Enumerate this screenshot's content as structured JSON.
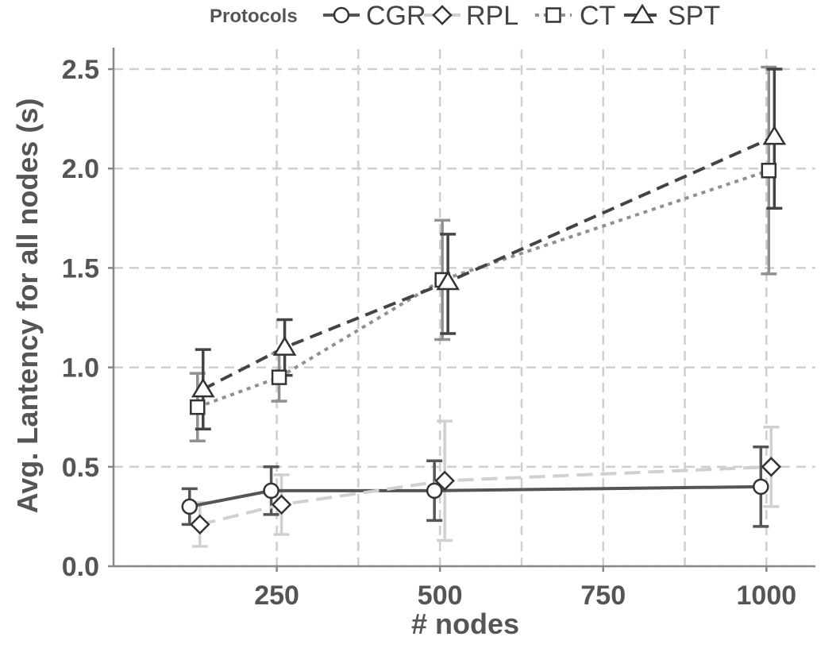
{
  "chart_data": {
    "type": "line",
    "title": "",
    "xlabel": "# nodes",
    "ylabel": "Avg. Lantency for all nodes (s)",
    "xlim": [
      0,
      1075
    ],
    "ylim": [
      0,
      2.6
    ],
    "xticks": [
      250,
      500,
      750,
      1000
    ],
    "xtick_labels": [
      "250",
      "500",
      "750",
      "1000"
    ],
    "yticks": [
      0,
      0.5,
      1,
      1.5,
      2,
      2.5
    ],
    "ytick_labels": [
      "0.0",
      "0.5",
      "1.0",
      "1.5",
      "2.0",
      "2.5"
    ],
    "grid": true,
    "legend": {
      "title": "Protocols",
      "position": "top"
    },
    "series": [
      {
        "name": "CGR",
        "marker": "circle",
        "dash": "solid",
        "color": "#555555",
        "x": [
          125,
          250,
          500,
          1000
        ],
        "y": [
          0.3,
          0.38,
          0.38,
          0.4
        ],
        "err_low": [
          0.21,
          0.26,
          0.23,
          0.2
        ],
        "err_high": [
          0.39,
          0.5,
          0.53,
          0.6
        ]
      },
      {
        "name": "RPL",
        "marker": "diamond",
        "dash": "long-dash",
        "color": "#d0d0d0",
        "x": [
          125,
          250,
          500,
          1000
        ],
        "y": [
          0.21,
          0.31,
          0.43,
          0.5
        ],
        "err_low": [
          0.1,
          0.16,
          0.13,
          0.3
        ],
        "err_high": [
          0.32,
          0.46,
          0.73,
          0.7
        ]
      },
      {
        "name": "CT",
        "marker": "square",
        "dash": "dotted",
        "color": "#909090",
        "x": [
          125,
          250,
          500,
          1000
        ],
        "y": [
          0.8,
          0.95,
          1.44,
          1.99
        ],
        "err_low": [
          0.63,
          0.83,
          1.14,
          1.47
        ],
        "err_high": [
          0.97,
          1.07,
          1.74,
          2.51
        ]
      },
      {
        "name": "SPT",
        "marker": "triangle",
        "dash": "dashed",
        "color": "#444444",
        "x": [
          125,
          250,
          500,
          1000
        ],
        "y": [
          0.89,
          1.1,
          1.43,
          2.16
        ],
        "err_low": [
          0.69,
          0.96,
          1.17,
          1.8
        ],
        "err_high": [
          1.09,
          1.24,
          1.67,
          2.5
        ]
      }
    ]
  }
}
